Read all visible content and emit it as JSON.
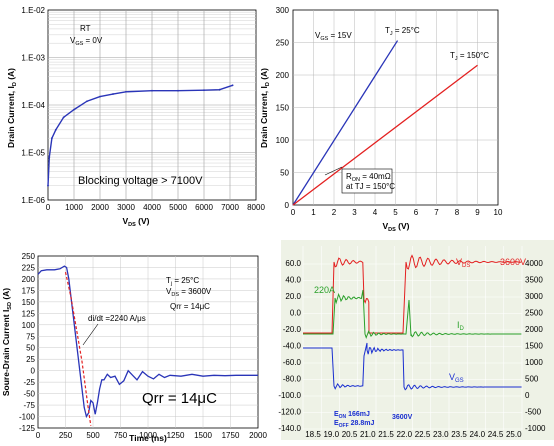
{
  "chart_data": [
    {
      "type": "line",
      "title": "",
      "xlabel_main": "V",
      "xlabel_sub": "DS",
      "xlabel_unit": " (V)",
      "ylabel": "Drain Current, I",
      "ylabel_sub": "D",
      "ylabel_unit": " (A)",
      "xlim": [
        0,
        8000
      ],
      "xticks": [
        "0",
        "1000",
        "2000",
        "3000",
        "4000",
        "5000",
        "6000",
        "7000",
        "8000"
      ],
      "ylim": [
        -6,
        -2
      ],
      "ylog": true,
      "yticks": [
        "1.E-02",
        "1.E-03",
        "1.E-04",
        "1.E-05",
        "1.E-06"
      ],
      "annotations": {
        "rt": "RT",
        "vgs_main": "V",
        "vgs_sub": "GS",
        "vgs_val": " = 0V",
        "blocking": "Blocking voltage > 7100V"
      },
      "series": [
        {
          "color": "#2a35b8",
          "x": [
            0,
            50,
            150,
            300,
            600,
            1000,
            1500,
            2000,
            2500,
            3000,
            4000,
            5000,
            6000,
            6600,
            7100
          ],
          "y": [
            2e-06,
            8e-06,
            2e-05,
            3e-05,
            5.5e-05,
            8e-05,
            0.00012,
            0.00015,
            0.00017,
            0.00019,
            0.0002,
            0.0002,
            0.000205,
            0.00021,
            0.00026
          ]
        }
      ]
    },
    {
      "type": "line",
      "title": "",
      "xlabel_main": "V",
      "xlabel_sub": "DS",
      "xlabel_unit": " (V)",
      "ylabel": "Drain Current, I",
      "ylabel_sub": "D",
      "ylabel_unit": " (A)",
      "xlim": [
        0,
        10
      ],
      "xticks": [
        "0",
        "1",
        "2",
        "3",
        "4",
        "5",
        "6",
        "7",
        "8",
        "9",
        "10"
      ],
      "ylim": [
        0,
        300
      ],
      "yticks": [
        "0",
        "50",
        "100",
        "150",
        "200",
        "250",
        "300"
      ],
      "annotations": {
        "vgs_main": "V",
        "vgs_sub": "GS",
        "vgs_val": " = 15V",
        "tj25_main": "T",
        "tj25_sub": "J",
        "tj25_val": " = 25°C",
        "tj150_main": "T",
        "tj150_sub": "J",
        "tj150_val": " = 150°C",
        "ron_main": "R",
        "ron_sub": "ON",
        "ron_val": " = 40mΩ",
        "ron_cond": "at TJ = 150°C"
      },
      "series": [
        {
          "name": "T_J = 25°C",
          "color": "#2a35b8",
          "x": [
            0,
            5.1
          ],
          "y": [
            0,
            253
          ]
        },
        {
          "name": "T_J = 150°C",
          "color": "#e32020",
          "x": [
            0,
            9.0
          ],
          "y": [
            0,
            215
          ]
        }
      ]
    },
    {
      "type": "line",
      "title": "",
      "xlabel": "Time (ns)",
      "ylabel": "Soure-Drain Current I",
      "ylabel_sub": "SD",
      "ylabel_unit": " (A)",
      "xlim": [
        0,
        2000
      ],
      "xticks": [
        "0",
        "250",
        "500",
        "750",
        "1000",
        "1250",
        "1500",
        "1750",
        "2000"
      ],
      "ylim": [
        -125,
        250
      ],
      "yticks": [
        "250",
        "225",
        "200",
        "175",
        "150",
        "125",
        "100",
        "75",
        "50",
        "25",
        "0",
        "-25",
        "-50",
        "-75",
        "-100",
        "-125"
      ],
      "annotations": {
        "tj_main": "T",
        "tj_sub": "j",
        "tj_val": " = 25°C",
        "vds_main": "V",
        "vds_sub": "DS",
        "vds_val": " = 3600V",
        "qrr_small": "Qrr = 14μC",
        "didt": "di/dt =2240 A/μs",
        "qrr_big": "Qrr = 14μC"
      },
      "series": [
        {
          "color": "#2a35b8",
          "x": [
            0,
            30,
            80,
            150,
            200,
            240,
            260,
            280,
            300,
            320,
            340,
            360,
            380,
            400,
            420,
            440,
            460,
            480,
            500,
            520,
            540,
            560,
            580,
            600,
            630,
            660,
            700,
            740,
            780,
            820,
            860,
            900,
            950,
            1000,
            1050,
            1100,
            1150,
            1200,
            1300,
            1400,
            1500,
            1600,
            1700,
            1800,
            1900,
            2000
          ],
          "y": [
            210,
            218,
            220,
            220,
            222,
            228,
            225,
            200,
            160,
            120,
            80,
            40,
            0,
            -40,
            -80,
            -100,
            -92,
            -65,
            -70,
            -95,
            -70,
            -40,
            -20,
            -20,
            -8,
            -15,
            -12,
            -30,
            -22,
            0,
            -10,
            -20,
            -2,
            -12,
            -18,
            -8,
            -15,
            -10,
            -12,
            -8,
            -12,
            -10,
            -11,
            -10,
            -10,
            -10
          ]
        },
        {
          "color": "#e32020",
          "dash": true,
          "x": [
            250,
            300,
            350,
            400,
            450,
            480
          ],
          "y": [
            215,
            160,
            90,
            20,
            -70,
            -120
          ]
        }
      ]
    },
    {
      "type": "line",
      "title": "",
      "background": "#eef2e6",
      "labels": {
        "vds_main": "V",
        "vds_sub": "DS",
        "vds_val": "3600V",
        "id_main": "I",
        "id_sub": "D",
        "id_val": "220A",
        "vgs_main": "V",
        "vgs_sub": "GS",
        "eon": "E",
        "eon_sub": "ON",
        "eon_val": " 166mJ",
        "eoff": "E",
        "eoff_sub": "OFF",
        "eoff_val": " 28.8mJ",
        "vds2": "3600V"
      },
      "left_scale": [
        "60.0",
        "40.0",
        "20.0",
        "0.0",
        "-20.0",
        "-40.0",
        "-60.0",
        "-80.0",
        "-100.0",
        "-120.0",
        "-140.0"
      ],
      "right_scale": [
        "4000",
        "3500",
        "3000",
        "2500",
        "2000",
        "1500",
        "1000",
        "500",
        "0",
        "-500",
        "-1000"
      ],
      "time_ticks": [
        "18.5",
        "19.0",
        "20.5",
        "21.0",
        "21.5",
        "22.0",
        "22.5",
        "23.0",
        "23.5",
        "24.0",
        "24.5",
        "25.0"
      ],
      "series": [
        {
          "name": "V_DS",
          "color": "#e32020"
        },
        {
          "name": "I_D",
          "color": "#2aa02a"
        },
        {
          "name": "V_GS",
          "color": "#1a2fd0"
        }
      ]
    }
  ]
}
